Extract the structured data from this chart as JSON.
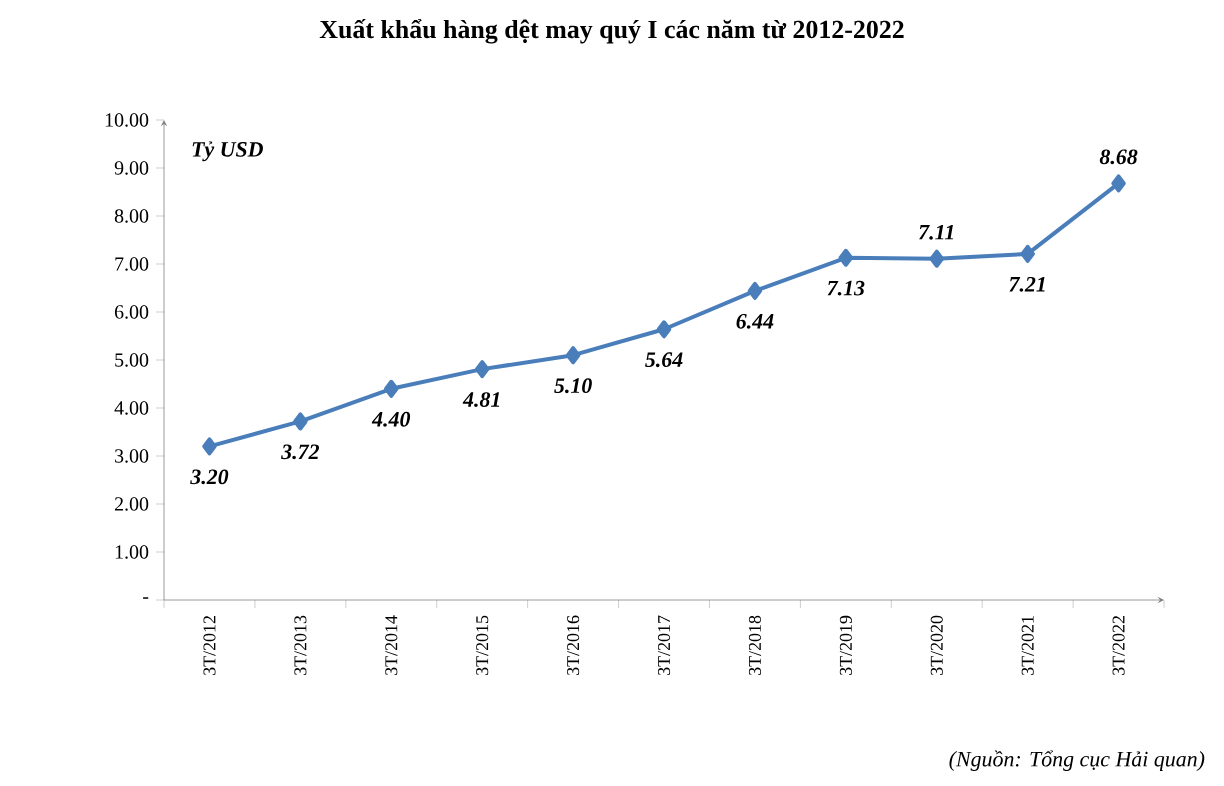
{
  "chart_data": {
    "type": "line",
    "title": "Xuất khẩu hàng dệt may quý I các năm từ 2012-2022",
    "ylabel": "Tỷ USD",
    "annotations": [
      "(Nguồn: Tổng cục Hải quan)"
    ],
    "categories": [
      "3T/2012",
      "3T/2013",
      "3T/2014",
      "3T/2015",
      "3T/2016",
      "3T/2017",
      "3T/2018",
      "3T/2019",
      "3T/2020",
      "3T/2021",
      "3T/2022"
    ],
    "values": [
      3.2,
      3.72,
      4.4,
      4.81,
      5.1,
      5.64,
      6.44,
      7.13,
      7.11,
      7.21,
      8.68
    ],
    "value_labels": [
      "3.20",
      "3.72",
      "4.40",
      "4.81",
      "5.10",
      "5.64",
      "6.44",
      "7.13",
      "7.11",
      "7.21",
      "8.68"
    ],
    "color": "#4a7ebb",
    "marker": "diamond",
    "line_style": "solid",
    "ylim": [
      0,
      10
    ],
    "yticks": [
      {
        "value": 0,
        "label": "-"
      },
      {
        "value": 1,
        "label": "1.00"
      },
      {
        "value": 2,
        "label": "2.00"
      },
      {
        "value": 3,
        "label": "3.00"
      },
      {
        "value": 4,
        "label": "4.00"
      },
      {
        "value": 5,
        "label": "5.00"
      },
      {
        "value": 6,
        "label": "6.00"
      },
      {
        "value": 7,
        "label": "7.00"
      },
      {
        "value": 8,
        "label": "8.00"
      },
      {
        "value": 9,
        "label": "9.00"
      },
      {
        "value": 10,
        "label": "10.00"
      }
    ]
  }
}
